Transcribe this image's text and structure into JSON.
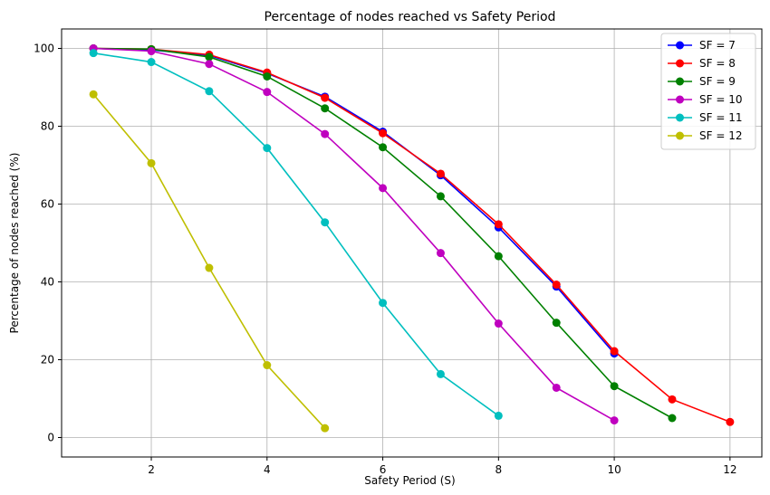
{
  "chart_data": {
    "type": "line",
    "title": "Percentage of nodes reached vs Safety Period",
    "xlabel": "Safety Period (S)",
    "ylabel": "Percentage of nodes reached (%)",
    "xlim": [
      0.45,
      12.55
    ],
    "ylim": [
      -5,
      105
    ],
    "xticks": [
      2,
      4,
      6,
      8,
      10,
      12
    ],
    "yticks": [
      0,
      20,
      40,
      60,
      80,
      100
    ],
    "grid": true,
    "legend_position": "top-right",
    "series": [
      {
        "name": "SF = 7",
        "color": "#0000ff",
        "x": [
          1,
          2,
          3,
          4,
          5,
          6,
          7,
          8,
          9,
          10
        ],
        "y": [
          100,
          99.6,
          98.2,
          93.6,
          87.6,
          78.6,
          67.4,
          54.0,
          38.8,
          21.6
        ]
      },
      {
        "name": "SF = 8",
        "color": "#ff0000",
        "x": [
          1,
          2,
          3,
          4,
          5,
          6,
          7,
          8,
          9,
          10,
          11,
          12
        ],
        "y": [
          100,
          99.8,
          98.4,
          93.8,
          87.3,
          78.2,
          67.8,
          54.8,
          39.3,
          22.2,
          9.8,
          4.0
        ]
      },
      {
        "name": "SF = 9",
        "color": "#008000",
        "x": [
          1,
          2,
          3,
          4,
          5,
          6,
          7,
          8,
          9,
          10,
          11
        ],
        "y": [
          100,
          99.8,
          97.8,
          92.8,
          84.6,
          74.6,
          62.0,
          46.6,
          29.5,
          13.2,
          5.0
        ]
      },
      {
        "name": "SF = 10",
        "color": "#bf00bf",
        "x": [
          1,
          2,
          3,
          4,
          5,
          6,
          7,
          8,
          9,
          10
        ],
        "y": [
          100,
          99.3,
          96.0,
          88.8,
          78.0,
          64.1,
          47.4,
          29.3,
          12.8,
          4.4
        ]
      },
      {
        "name": "SF = 11",
        "color": "#00bfbf",
        "x": [
          1,
          2,
          3,
          4,
          5,
          6,
          7,
          8
        ],
        "y": [
          98.8,
          96.5,
          89.0,
          74.4,
          55.3,
          34.6,
          16.3,
          5.6
        ]
      },
      {
        "name": "SF = 12",
        "color": "#bfbf00",
        "x": [
          1,
          2,
          3,
          4,
          5
        ],
        "y": [
          88.2,
          70.5,
          43.6,
          18.6,
          2.4
        ]
      }
    ]
  }
}
